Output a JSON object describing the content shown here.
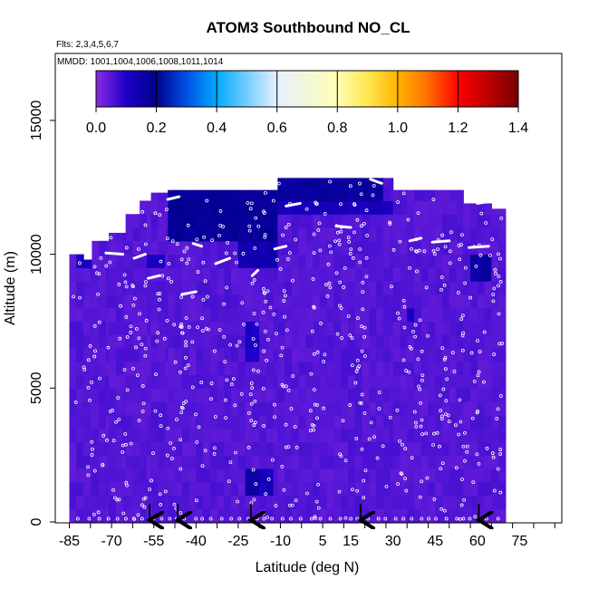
{
  "chart_data": {
    "type": "heatmap",
    "title": "ATOM3 Southbound NO_CL",
    "notes": {
      "flights": "Flts: 2,3,4,5,6,7",
      "dates": "MMDD: 1001,1004,1006,1008,1011,1014"
    },
    "xlabel": "Latitude (deg N)",
    "ylabel": "Altitude (m)",
    "xlim": [
      -90,
      90
    ],
    "ylim": [
      0,
      17500
    ],
    "x_ticks": [
      -85,
      -70,
      -55,
      -40,
      -25,
      -10,
      5,
      15,
      30,
      45,
      60,
      75
    ],
    "y_ticks": [
      0,
      5000,
      10000,
      15000
    ],
    "colorbar": {
      "ticks": [
        "0.0",
        "0.2",
        "0.4",
        "0.6",
        "0.8",
        "1.0",
        "1.2",
        "1.4"
      ],
      "range": [
        0,
        1.4
      ],
      "position": "top-inside"
    },
    "background_value": 0.05,
    "coverage": [
      {
        "lat": [
          -85,
          -80
        ],
        "alt": [
          0,
          10000
        ]
      },
      {
        "lat": [
          -80,
          -77
        ],
        "alt": [
          0,
          9800
        ]
      },
      {
        "lat": [
          -77,
          -71
        ],
        "alt": [
          0,
          10500
        ]
      },
      {
        "lat": [
          -71,
          -65
        ],
        "alt": [
          0,
          10800
        ]
      },
      {
        "lat": [
          -65,
          -60
        ],
        "alt": [
          0,
          11500
        ]
      },
      {
        "lat": [
          -60,
          -56
        ],
        "alt": [
          0,
          12000
        ]
      },
      {
        "lat": [
          -56,
          -50
        ],
        "alt": [
          0,
          12300
        ]
      },
      {
        "lat": [
          -50,
          -25
        ],
        "alt": [
          0,
          12400
        ]
      },
      {
        "lat": [
          -25,
          -11
        ],
        "alt": [
          0,
          12400
        ]
      },
      {
        "lat": [
          -11,
          30
        ],
        "alt": [
          0,
          12850
        ]
      },
      {
        "lat": [
          30,
          35
        ],
        "alt": [
          0,
          12400
        ]
      },
      {
        "lat": [
          35,
          55
        ],
        "alt": [
          0,
          12400
        ]
      },
      {
        "lat": [
          55,
          65
        ],
        "alt": [
          0,
          11900
        ]
      },
      {
        "lat": [
          65,
          70
        ],
        "alt": [
          0,
          11700
        ]
      }
    ],
    "enhanced_regions": [
      {
        "lat": [
          -50,
          -11
        ],
        "alt": [
          10600,
          12400
        ],
        "value": 0.18
      },
      {
        "lat": [
          -11,
          26
        ],
        "alt": [
          11900,
          12850
        ],
        "value": 0.17
      },
      {
        "lat": [
          -25,
          -11
        ],
        "alt": [
          9600,
          10600
        ],
        "value": 0.14
      },
      {
        "lat": [
          -10,
          30
        ],
        "alt": [
          11300,
          11900
        ],
        "value": 0.12
      },
      {
        "lat": [
          -23,
          -17
        ],
        "alt": [
          6000,
          7500
        ],
        "value": 0.11
      },
      {
        "lat": [
          -22,
          -17
        ],
        "alt": [
          1000,
          2000
        ],
        "value": 0.16
      },
      {
        "lat": [
          -18,
          -13
        ],
        "alt": [
          1200,
          2000
        ],
        "value": 0.12
      },
      {
        "lat": [
          58,
          64
        ],
        "alt": [
          8800,
          10200
        ],
        "value": 0.16
      },
      {
        "lat": [
          -83,
          -76
        ],
        "alt": [
          9300,
          9900
        ],
        "value": 0.12
      },
      {
        "lat": [
          -58,
          -51
        ],
        "alt": [
          9400,
          10200
        ],
        "value": 0.11
      },
      {
        "lat": [
          34,
          38
        ],
        "alt": [
          7600,
          8200
        ],
        "value": 0.12
      },
      {
        "lat": [
          -33,
          -26
        ],
        "alt": [
          10400,
          11000
        ],
        "value": 0.12
      }
    ],
    "flight_track_segments": [
      {
        "lat": [
          -41,
          -38
        ],
        "alt": [
          10400,
          10300
        ]
      },
      {
        "lat": [
          -33,
          -28
        ],
        "alt": [
          9650,
          9850
        ]
      },
      {
        "lat": [
          -20,
          -18
        ],
        "alt": [
          9200,
          9400
        ]
      },
      {
        "lat": [
          -12,
          -8
        ],
        "alt": [
          10200,
          10300
        ]
      },
      {
        "lat": [
          10,
          15
        ],
        "alt": [
          11050,
          11000
        ]
      },
      {
        "lat": [
          -50,
          -46
        ],
        "alt": [
          12050,
          12150
        ]
      },
      {
        "lat": [
          -62,
          -58
        ],
        "alt": [
          9850,
          10000
        ]
      },
      {
        "lat": [
          -57,
          -53
        ],
        "alt": [
          9100,
          9200
        ]
      },
      {
        "lat": [
          -45,
          -40
        ],
        "alt": [
          8500,
          8600
        ]
      },
      {
        "lat": [
          36,
          40
        ],
        "alt": [
          10500,
          10600
        ]
      },
      {
        "lat": [
          44,
          50
        ],
        "alt": [
          10450,
          10500
        ]
      },
      {
        "lat": [
          57,
          64
        ],
        "alt": [
          10250,
          10300
        ]
      },
      {
        "lat": [
          -8,
          -3
        ],
        "alt": [
          11800,
          11900
        ]
      },
      {
        "lat": [
          22,
          26
        ],
        "alt": [
          12800,
          12650
        ]
      },
      {
        "lat": [
          60,
          66
        ],
        "alt": [
          11900,
          12000
        ]
      },
      {
        "lat": [
          -72,
          -66
        ],
        "alt": [
          10050,
          10000
        ]
      }
    ],
    "profile_latitudes": [
      -56.5,
      -46.5,
      -20.5,
      18.5,
      60.5
    ]
  }
}
